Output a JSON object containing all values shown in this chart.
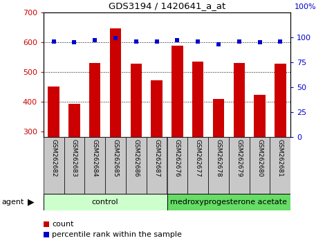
{
  "title": "GDS3194 / 1420641_a_at",
  "categories": [
    "GSM262682",
    "GSM262683",
    "GSM262684",
    "GSM262685",
    "GSM262686",
    "GSM262687",
    "GSM262676",
    "GSM262677",
    "GSM262678",
    "GSM262679",
    "GSM262680",
    "GSM262681"
  ],
  "bar_values": [
    450,
    393,
    530,
    645,
    527,
    472,
    587,
    535,
    408,
    530,
    422,
    527
  ],
  "bar_color": "#cc0000",
  "percentile_values": [
    96,
    95,
    97,
    99,
    96,
    96,
    97,
    96,
    93,
    96,
    95,
    96
  ],
  "percentile_color": "#0000cc",
  "ylim_left": [
    280,
    700
  ],
  "yticks_left": [
    300,
    400,
    500,
    600,
    700
  ],
  "ylim_right": [
    0,
    125
  ],
  "yticks_right": [
    0,
    25,
    50,
    75,
    100
  ],
  "grid_values": [
    400,
    500,
    600
  ],
  "group1_label": "control",
  "group2_label": "medroxyprogesterone acetate",
  "group1_color": "#ccffcc",
  "group2_color": "#66dd66",
  "agent_label": "agent",
  "legend_count_label": "count",
  "legend_percentile_label": "percentile rank within the sample",
  "bar_width": 0.55,
  "tick_label_area_color": "#c8c8c8",
  "background_color": "#ffffff",
  "left_ylabel_color": "#cc0000",
  "right_ylabel_color": "#0000cc",
  "right_axis_top_label": "100%"
}
